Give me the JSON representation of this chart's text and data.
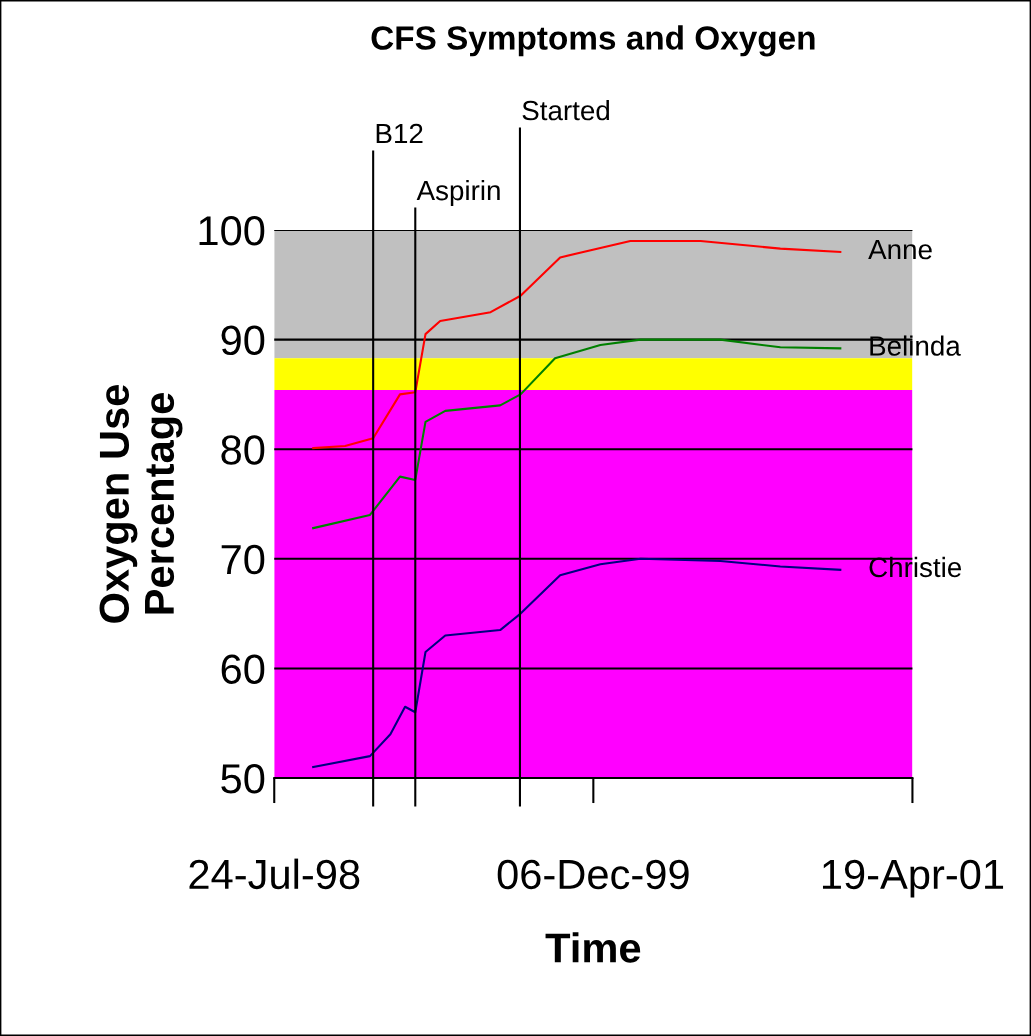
{
  "chart_data": {
    "type": "line",
    "title": "CFS Symptoms and Oxygen",
    "xlabel": "Time",
    "ylabel": "Oxygen Use\nPercentage",
    "xlim": [
      "1998-07-24",
      "2001-04-19"
    ],
    "xticks": [
      {
        "value": "1998-07-24",
        "label": "24-Jul-98"
      },
      {
        "value": "1999-12-06",
        "label": "06-Dec-99"
      },
      {
        "value": "2001-04-19",
        "label": "19-Apr-01"
      }
    ],
    "ylim": [
      50,
      100
    ],
    "yticks": [
      50,
      60,
      70,
      80,
      90,
      100
    ],
    "grid": "y",
    "legend": false,
    "marker": "none",
    "line_style": "solid",
    "bands": [
      {
        "axis": "y",
        "from": 88.3,
        "to": 100,
        "color": "#c0c0c0"
      },
      {
        "axis": "y",
        "from": 85.4,
        "to": 88.3,
        "color": "#ffff00"
      },
      {
        "axis": "y",
        "from": 50,
        "to": 85.4,
        "color": "#ff00ff"
      }
    ],
    "ref_lines": [
      {
        "axis": "x",
        "value": "1998-12-26",
        "label": "B12",
        "color": "#000000"
      },
      {
        "axis": "x",
        "value": "1999-03-02",
        "label": "Aspirin",
        "color": "#000000"
      },
      {
        "axis": "x",
        "value": "1999-08-13",
        "label": "Started",
        "color": "#000000"
      }
    ],
    "series": [
      {
        "name": "Anne",
        "color": "#ff0000",
        "x": [
          "1998-09-23",
          "1998-11-12",
          "1998-12-26",
          "1999-02-06",
          "1999-03-02",
          "1999-03-18",
          "1999-04-10",
          "1999-06-28",
          "1999-08-14",
          "1999-10-15",
          "2000-02-02",
          "2000-05-22",
          "2000-09-24",
          "2000-12-27"
        ],
        "values": [
          80.1,
          80.3,
          81,
          85,
          85.2,
          90.5,
          91.7,
          92.5,
          94,
          97.5,
          99,
          99,
          98.3,
          98
        ]
      },
      {
        "name": "Belinda",
        "color": "#008000",
        "x": [
          "1998-09-23",
          "1998-12-21",
          "1999-02-06",
          "1999-03-02",
          "1999-03-18",
          "1999-04-18",
          "1999-07-13",
          "1999-08-14",
          "1999-10-07",
          "1999-12-17",
          "2000-02-18",
          "2000-06-22",
          "2000-09-24",
          "2000-12-27"
        ],
        "values": [
          72.8,
          74,
          77.5,
          77.2,
          82.5,
          83.5,
          84,
          85,
          88.3,
          89.5,
          90,
          90,
          89.3,
          89.2
        ]
      },
      {
        "name": "Christie",
        "color": "#000080",
        "x": [
          "1998-09-23",
          "1998-12-21",
          "1999-01-22",
          "1999-02-14",
          "1999-03-02",
          "1999-03-18",
          "1999-04-18",
          "1999-07-13",
          "1999-08-14",
          "1999-10-15",
          "1999-12-17",
          "2000-02-18",
          "2000-06-22",
          "2000-09-24",
          "2000-12-27"
        ],
        "values": [
          51,
          52,
          54,
          56.5,
          56,
          61.5,
          63,
          63.5,
          65,
          68.5,
          69.5,
          70,
          69.8,
          69.3,
          69
        ]
      }
    ]
  }
}
